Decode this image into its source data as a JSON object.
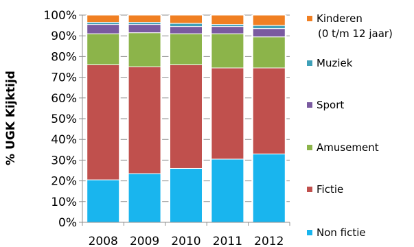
{
  "chart_data": {
    "type": "bar",
    "stacked": true,
    "percent_axis": true,
    "ylabel": "% UGK Kijktijd",
    "ylim": [
      0,
      100
    ],
    "yticks": [
      "0%",
      "10%",
      "20%",
      "30%",
      "40%",
      "50%",
      "60%",
      "70%",
      "80%",
      "90%",
      "100%"
    ],
    "categories": [
      "2008",
      "2009",
      "2010",
      "2011",
      "2012"
    ],
    "legend_position": "right",
    "series": [
      {
        "name": "Non fictie",
        "color": "#19b5ee",
        "values": [
          20.5,
          23.5,
          26,
          30.5,
          33
        ]
      },
      {
        "name": "Fictie",
        "color": "#c0504d",
        "values": [
          55.5,
          51.5,
          50,
          44,
          41.5
        ]
      },
      {
        "name": "Amusement",
        "color": "#8cb44a",
        "values": [
          15,
          16.5,
          15,
          16.5,
          15
        ]
      },
      {
        "name": "Sport",
        "color": "#7a5aa0",
        "values": [
          4.5,
          4,
          3.5,
          3.5,
          4
        ]
      },
      {
        "name": "Muziek",
        "color": "#3fa0b8",
        "values": [
          1,
          1,
          1.5,
          1,
          1.5
        ]
      },
      {
        "name": "Kinderen",
        "name_line2": "(0 t/m 12 jaar)",
        "color": "#f07f22",
        "values": [
          3.5,
          3.5,
          4,
          4.5,
          5
        ]
      }
    ]
  }
}
